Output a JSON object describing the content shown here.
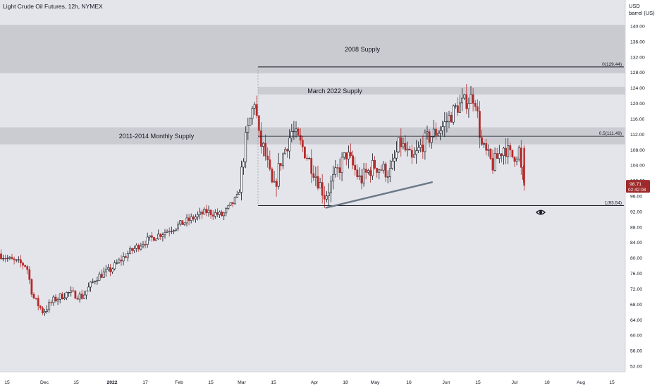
{
  "header": {
    "title": "Light Crude Oil Futures, 12h, NYMEX",
    "unit_line1": "USD",
    "unit_line2": "barrel (US)"
  },
  "price_badge": {
    "price": "98.71",
    "countdown": "02:42:08",
    "color": "#9e2a2b"
  },
  "colors": {
    "up_candle": "#131722",
    "down_candle": "#b52a2a",
    "zone_fill": "#c7c9cf",
    "plot_bg": "#e4e5ea",
    "trendline": "#6b7886",
    "level_line": "#131722"
  },
  "icons": {
    "watch": "eye-icon"
  },
  "chart_data": {
    "type": "candlestick",
    "title": "Light Crude Oil Futures, 12h, NYMEX",
    "ylabel": "USD barrel (US)",
    "ylim": [
      50,
      144
    ],
    "y_ticks": [
      "52.00",
      "56.00",
      "60.00",
      "64.00",
      "68.00",
      "72.00",
      "76.00",
      "80.00",
      "84.00",
      "88.00",
      "92.00",
      "96.00",
      "100.00",
      "104.00",
      "108.00",
      "112.00",
      "116.00",
      "120.00",
      "124.00",
      "128.00",
      "132.00",
      "136.00",
      "140.00"
    ],
    "x_ticks": [
      "15",
      "Dec",
      "15",
      "2022",
      "17",
      "Feb",
      "15",
      "Mar",
      "15",
      "Apr",
      "18",
      "May",
      "16",
      "Jun",
      "15",
      "Jul",
      "18",
      "Aug",
      "15"
    ],
    "grid": false,
    "zones": [
      {
        "label": "2008 Supply",
        "low": 127.8,
        "high": 140.3
      },
      {
        "label": "March 2022 Supply",
        "low": 122.3,
        "high": 124.3
      },
      {
        "label": "2011-2014 Monthly Supply",
        "low": 109.4,
        "high": 113.8
      }
    ],
    "levels": [
      {
        "label": "0(129.44)",
        "value": 129.44
      },
      {
        "label": "0.5(111.49)",
        "value": 111.49
      },
      {
        "label": "1(93.54)",
        "value": 93.54
      }
    ],
    "trendline": {
      "from": {
        "date": "2022-04-07",
        "price": 93.0
      },
      "to": {
        "date": "2022-05-26",
        "price": 99.6
      }
    },
    "last_price": 98.71,
    "anchors": [
      {
        "date": "2021-11-01",
        "price": 82
      },
      {
        "date": "2021-11-08",
        "price": 81.5
      },
      {
        "date": "2021-11-15",
        "price": 79.5
      },
      {
        "date": "2021-11-23",
        "price": 78
      },
      {
        "date": "2021-11-26",
        "price": 70
      },
      {
        "date": "2021-12-01",
        "price": 66
      },
      {
        "date": "2021-12-06",
        "price": 69
      },
      {
        "date": "2021-12-13",
        "price": 71
      },
      {
        "date": "2021-12-20",
        "price": 70
      },
      {
        "date": "2021-12-27",
        "price": 75
      },
      {
        "date": "2022-01-03",
        "price": 77
      },
      {
        "date": "2022-01-10",
        "price": 81
      },
      {
        "date": "2022-01-17",
        "price": 84
      },
      {
        "date": "2022-01-24",
        "price": 86
      },
      {
        "date": "2022-01-31",
        "price": 88
      },
      {
        "date": "2022-02-07",
        "price": 90
      },
      {
        "date": "2022-02-14",
        "price": 92
      },
      {
        "date": "2022-02-21",
        "price": 91
      },
      {
        "date": "2022-02-28",
        "price": 96
      },
      {
        "date": "2022-03-03",
        "price": 110
      },
      {
        "date": "2022-03-07",
        "price": 121
      },
      {
        "date": "2022-03-09",
        "price": 110
      },
      {
        "date": "2022-03-11",
        "price": 108
      },
      {
        "date": "2022-03-15",
        "price": 97
      },
      {
        "date": "2022-03-18",
        "price": 105
      },
      {
        "date": "2022-03-23",
        "price": 113
      },
      {
        "date": "2022-03-28",
        "price": 108
      },
      {
        "date": "2022-04-01",
        "price": 103
      },
      {
        "date": "2022-04-07",
        "price": 96
      },
      {
        "date": "2022-04-12",
        "price": 101
      },
      {
        "date": "2022-04-18",
        "price": 107
      },
      {
        "date": "2022-04-25",
        "price": 100
      },
      {
        "date": "2022-05-02",
        "price": 104
      },
      {
        "date": "2022-05-09",
        "price": 102
      },
      {
        "date": "2022-05-13",
        "price": 110
      },
      {
        "date": "2022-05-18",
        "price": 105
      },
      {
        "date": "2022-05-23",
        "price": 110
      },
      {
        "date": "2022-05-31",
        "price": 114
      },
      {
        "date": "2022-06-06",
        "price": 119
      },
      {
        "date": "2022-06-14",
        "price": 122
      },
      {
        "date": "2022-06-17",
        "price": 109
      },
      {
        "date": "2022-06-22",
        "price": 104
      },
      {
        "date": "2022-06-27",
        "price": 109
      },
      {
        "date": "2022-06-30",
        "price": 106
      },
      {
        "date": "2022-07-04",
        "price": 108
      },
      {
        "date": "2022-07-05",
        "price": 98.7
      }
    ]
  }
}
